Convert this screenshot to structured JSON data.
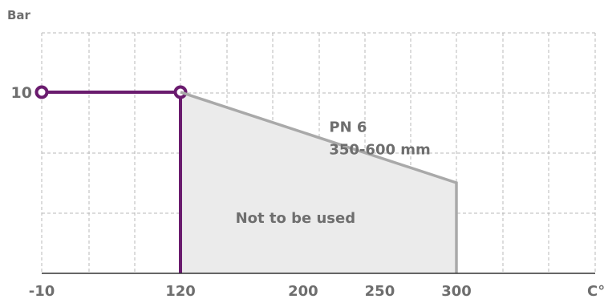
{
  "chart_data": {
    "type": "line",
    "ylabel": "Bar",
    "xunit": "C°",
    "x_ticks": [
      {
        "label": "-10",
        "value": -10
      },
      {
        "label": "120",
        "value": 120
      },
      {
        "label": "200",
        "value": 200
      },
      {
        "label": "250",
        "value": 250
      },
      {
        "label": "300",
        "value": 300
      }
    ],
    "y_ticks": [
      {
        "label": "10",
        "value": 10
      }
    ],
    "xlim": [
      -10,
      420
    ],
    "ylim": [
      0,
      13
    ],
    "grid": true,
    "series": [
      {
        "role": "operating-limit",
        "color": "#6a1b6e",
        "points": [
          [
            -10,
            10
          ],
          [
            120,
            10
          ],
          [
            120,
            0
          ]
        ],
        "markers": [
          [
            -10,
            10
          ],
          [
            120,
            10
          ]
        ]
      },
      {
        "role": "pn-curve",
        "color": "#a9a9a9",
        "points": [
          [
            120,
            10
          ],
          [
            300,
            5
          ],
          [
            300,
            0
          ]
        ]
      }
    ],
    "shaded_region": {
      "points": [
        [
          120,
          10
        ],
        [
          300,
          5
        ],
        [
          300,
          0
        ],
        [
          120,
          0
        ]
      ],
      "fill": "#ebebeb",
      "label": "Not to be used",
      "label_at": [
        195,
        3.1
      ]
    },
    "annotation": {
      "lines": [
        "PN 6",
        "350-600 mm"
      ],
      "at": [
        217,
        8.6
      ]
    }
  }
}
